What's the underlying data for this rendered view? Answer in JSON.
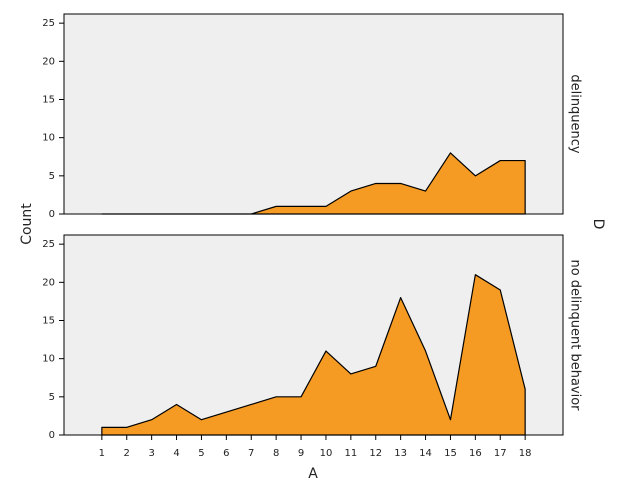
{
  "chart_data": {
    "type": "area",
    "x_label": "A",
    "y_label": "Count",
    "facet_label": "D",
    "x": [
      1,
      2,
      3,
      4,
      5,
      6,
      7,
      8,
      9,
      10,
      11,
      12,
      13,
      14,
      15,
      16,
      17,
      18
    ],
    "xlim": [
      -0.52,
      19.52
    ],
    "xticks": [
      1,
      2,
      3,
      4,
      5,
      6,
      7,
      8,
      9,
      10,
      11,
      12,
      13,
      14,
      15,
      16,
      17,
      18
    ],
    "ylim": [
      0,
      26.2
    ],
    "yticks": [
      0,
      5,
      10,
      15,
      20,
      25
    ],
    "panels": [
      {
        "name": "delinquency",
        "color": "#f59a23",
        "values": [
          0,
          0,
          0,
          0,
          0,
          0,
          0,
          1,
          1,
          1,
          3,
          4,
          4,
          3,
          8,
          5,
          7,
          7
        ]
      },
      {
        "name": "no delinquent behavior",
        "color": "#f59a23",
        "values": [
          1,
          1,
          2,
          4,
          2,
          3,
          4,
          5,
          5,
          11,
          8,
          9,
          18,
          11,
          2,
          21,
          19,
          6
        ]
      }
    ]
  }
}
